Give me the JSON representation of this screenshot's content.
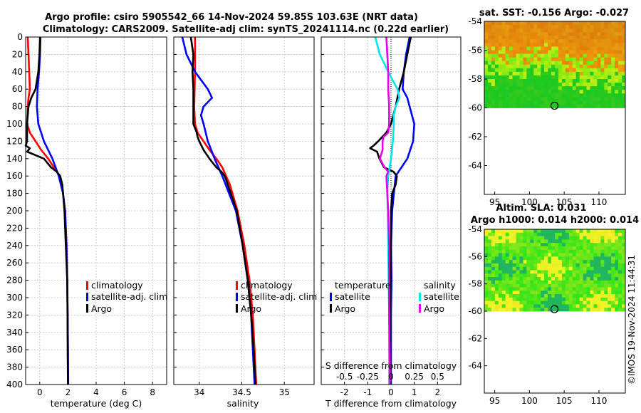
{
  "title_line1": "Argo profile: csiro 5905542_66 14-Nov-2024 59.85S 103.63E (NRT data)",
  "title_line2": "Climatology: CARS2009. Satellite-adj clim: synTS_20241114.nc (0.22d earlier)",
  "sst_title": "sat. SST: -0.156 Argo: -0.027",
  "sla_title1": "Altim. SLA: 0.031",
  "sla_title2": "Argo h1000: 0.014 h2000: 0.014",
  "credit": "©IMOS 19-Nov-2024 11:44:31",
  "colors": {
    "climatology": "#ff0000",
    "satellite": "#0000ff",
    "argo": "#000000",
    "salinity_satellite": "#00e5ee",
    "salinity_argo": "#e600e6"
  },
  "chart_data": [
    {
      "type": "line",
      "name": "temperature-profile",
      "xlabel": "temperature (deg C)",
      "xlim": [
        -1,
        9
      ],
      "xticks": [
        0,
        2,
        4,
        6,
        8
      ],
      "ylim": [
        0,
        400
      ],
      "yticks": [
        0,
        20,
        40,
        60,
        80,
        100,
        120,
        140,
        160,
        180,
        200,
        220,
        240,
        260,
        280,
        300,
        320,
        340,
        360,
        380,
        400
      ],
      "grid": true,
      "legend": "bottom-right",
      "series": [
        {
          "name": "climatology",
          "depth": [
            0,
            20,
            40,
            60,
            70,
            80,
            100,
            110,
            120,
            130,
            140,
            150,
            160,
            180,
            200,
            240,
            280,
            320,
            360,
            400
          ],
          "x": [
            -0.85,
            -0.8,
            -0.75,
            -0.7,
            -0.8,
            -0.85,
            -0.9,
            -0.7,
            -0.3,
            0.1,
            0.6,
            1.0,
            1.4,
            1.65,
            1.8,
            1.9,
            1.95,
            1.98,
            2.0,
            2.0
          ]
        },
        {
          "name": "satellite-adj. clim",
          "depth": [
            0,
            20,
            40,
            60,
            80,
            100,
            120,
            140,
            160,
            180,
            200,
            240,
            280,
            320,
            360,
            400
          ],
          "x": [
            0.05,
            0.02,
            -0.05,
            -0.15,
            -0.2,
            -0.1,
            0.3,
            0.9,
            1.35,
            1.65,
            1.8,
            1.9,
            1.95,
            1.98,
            2.0,
            2.02
          ]
        },
        {
          "name": "Argo",
          "depth": [
            0,
            20,
            40,
            60,
            70,
            80,
            90,
            100,
            110,
            120,
            125,
            128,
            132,
            140,
            150,
            155,
            160,
            170,
            180,
            200,
            240,
            280,
            320,
            360,
            400
          ],
          "x": [
            0.02,
            -0.02,
            -0.1,
            -0.3,
            -0.6,
            -0.8,
            -0.85,
            -0.9,
            -0.9,
            -0.9,
            -1.0,
            -0.7,
            -0.9,
            0.3,
            0.8,
            1.2,
            1.45,
            1.6,
            1.65,
            1.75,
            1.85,
            1.95,
            1.97,
            1.98,
            2.0
          ]
        }
      ]
    },
    {
      "type": "line",
      "name": "salinity-profile",
      "xlabel": "salinity",
      "xlim": [
        33.7,
        35.35
      ],
      "xticks": [
        34,
        34.5,
        35
      ],
      "ylim": [
        0,
        400
      ],
      "grid": true,
      "legend": "bottom-right",
      "series": [
        {
          "name": "climatology",
          "depth": [
            0,
            40,
            80,
            100,
            110,
            120,
            130,
            140,
            150,
            170,
            200,
            240,
            280,
            320,
            360,
            400
          ],
          "x": [
            33.95,
            33.95,
            33.94,
            33.95,
            33.98,
            34.05,
            34.12,
            34.2,
            34.27,
            34.36,
            34.45,
            34.53,
            34.59,
            34.63,
            34.65,
            34.67
          ]
        },
        {
          "name": "satellite-adj. clim",
          "depth": [
            0,
            20,
            40,
            60,
            70,
            80,
            90,
            100,
            120,
            140,
            160,
            180,
            200,
            240,
            280,
            320,
            360,
            400
          ],
          "x": [
            33.8,
            33.85,
            33.95,
            34.1,
            34.15,
            34.05,
            34.02,
            34.05,
            34.1,
            34.18,
            34.27,
            34.35,
            34.43,
            34.51,
            34.57,
            34.61,
            34.63,
            34.65
          ]
        },
        {
          "name": "Argo",
          "depth": [
            0,
            20,
            40,
            60,
            80,
            100,
            110,
            115,
            120,
            130,
            140,
            150,
            155,
            160,
            180,
            200,
            240,
            280,
            320,
            360,
            400
          ],
          "x": [
            33.9,
            33.93,
            33.92,
            33.93,
            33.93,
            33.93,
            33.97,
            33.98,
            34.0,
            34.05,
            34.12,
            34.2,
            34.26,
            34.3,
            34.37,
            34.44,
            34.51,
            34.57,
            34.61,
            34.64,
            34.66
          ]
        }
      ]
    },
    {
      "type": "line",
      "name": "difference-profile",
      "xlabel": "T difference from climatology",
      "x2label": "S difference from climatology",
      "xlim": [
        -3,
        3
      ],
      "xticks": [
        -2,
        -1,
        0,
        1,
        2
      ],
      "x2ticks": [
        -0.5,
        -0.25,
        0,
        0.25,
        0.5
      ],
      "x2ticklabels": [
        "-0.5",
        "-0.25",
        "0",
        "0.25",
        "0.5"
      ],
      "ylim": [
        0,
        400
      ],
      "grid": true,
      "legend": "bottom",
      "legend_temperature_title": "temperature",
      "legend_salinity_title": "salinity",
      "series": [
        {
          "name": "temperature satellite",
          "depth": [
            0,
            20,
            40,
            60,
            70,
            80,
            90,
            100,
            120,
            140,
            160,
            200,
            240,
            280,
            320,
            360,
            400
          ],
          "x": [
            0.8,
            0.65,
            0.55,
            0.5,
            0.7,
            0.8,
            0.9,
            1.0,
            0.95,
            0.7,
            0.2,
            0.05,
            0.0,
            0.02,
            0.0,
            0.0,
            0.0
          ]
        },
        {
          "name": "temperature Argo",
          "depth": [
            0,
            20,
            40,
            60,
            80,
            100,
            110,
            120,
            125,
            128,
            132,
            140,
            150,
            155,
            160,
            170,
            180,
            200,
            240,
            280,
            320,
            360,
            400
          ],
          "x": [
            0.85,
            0.7,
            0.55,
            0.35,
            0.2,
            0.0,
            -0.2,
            -0.55,
            -0.75,
            -0.9,
            -0.6,
            -0.5,
            -0.3,
            0.1,
            0.25,
            0.2,
            0.05,
            0.0,
            0.0,
            -0.02,
            -0.05,
            -0.05,
            -0.03
          ]
        },
        {
          "name": "salinity satellite",
          "depth": [
            0,
            20,
            40,
            60,
            70,
            80,
            90,
            100,
            120,
            140,
            160,
            180,
            200,
            240,
            280,
            320,
            360,
            400
          ],
          "x": [
            -0.17,
            -0.12,
            -0.03,
            0.07,
            0.09,
            0.05,
            0.03,
            0.03,
            0.02,
            0.0,
            -0.03,
            -0.04,
            -0.035,
            -0.03,
            -0.025,
            -0.02,
            -0.02,
            -0.02
          ]
        },
        {
          "name": "salinity Argo",
          "depth": [
            0,
            20,
            40,
            60,
            80,
            100,
            110,
            115,
            120,
            130,
            140,
            150,
            155,
            160,
            180,
            200,
            240,
            280,
            320,
            360,
            400
          ],
          "x": [
            -0.05,
            -0.04,
            -0.03,
            -0.03,
            -0.02,
            -0.02,
            -0.03,
            -0.08,
            -0.09,
            -0.09,
            -0.12,
            -0.07,
            -0.03,
            -0.05,
            -0.04,
            -0.03,
            -0.02,
            -0.02,
            -0.02,
            -0.015,
            -0.01
          ]
        }
      ]
    },
    {
      "type": "heatmap",
      "name": "sst-map",
      "xticks": [
        95,
        100,
        105,
        110
      ],
      "yticks": [
        -54,
        -56,
        -58,
        -60,
        -62,
        -64
      ],
      "xlim": [
        93.5,
        113.8
      ],
      "ylim": [
        -66,
        -54
      ],
      "data_lat_range": [
        -60,
        -54
      ],
      "marker": {
        "lon": 103.6,
        "lat": -59.85
      }
    },
    {
      "type": "heatmap",
      "name": "sla-map",
      "xticks": [
        95,
        100,
        105,
        110
      ],
      "yticks": [
        -54,
        -56,
        -58,
        -60,
        -62,
        -64
      ],
      "xlim": [
        93.5,
        113.8
      ],
      "ylim": [
        -66,
        -54
      ],
      "data_lat_range": [
        -60,
        -54
      ],
      "marker": {
        "lon": 103.6,
        "lat": -59.85
      }
    }
  ]
}
